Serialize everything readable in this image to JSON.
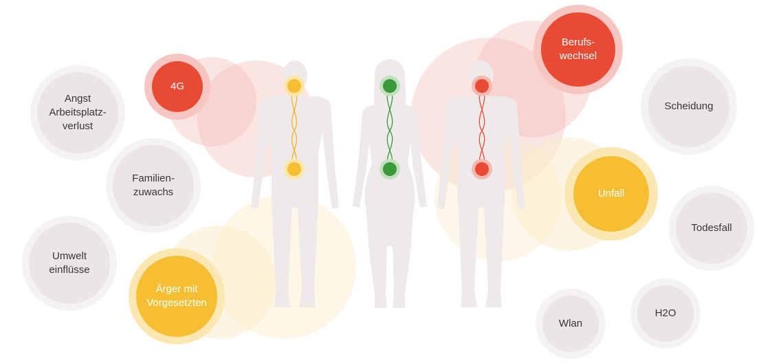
{
  "colors": {
    "red": "#e84a33",
    "yellow": "#f6be32",
    "green": "#3a9a3a",
    "neutral": "#ebe5e5",
    "figure": "#eeeaea"
  },
  "figures": [
    {
      "name": "left-figure",
      "chakra_color": "yellow"
    },
    {
      "name": "middle-figure",
      "chakra_color": "green"
    },
    {
      "name": "right-figure",
      "chakra_color": "red"
    }
  ],
  "bubbles": {
    "angst": {
      "label": "Angst\nArbeitsplatz-\nverlust",
      "state": "neutral"
    },
    "familienzuwachs": {
      "label": "Familien-\nzuwachs",
      "state": "neutral"
    },
    "umwelteinfluesse": {
      "label": "Umwelt\neinflüsse",
      "state": "neutral"
    },
    "viergee": {
      "label": "4G",
      "state": "red"
    },
    "aerger": {
      "label": "Ärger mit\nVorgesetzten",
      "state": "yellow"
    },
    "berufswechsel": {
      "label": "Berufs-\nwechsel",
      "state": "red"
    },
    "scheidung": {
      "label": "Scheidung",
      "state": "neutral"
    },
    "unfall": {
      "label": "Unfall",
      "state": "yellow"
    },
    "todesfall": {
      "label": "Todesfall",
      "state": "neutral"
    },
    "wlan": {
      "label": "Wlan",
      "state": "neutral"
    },
    "h2o": {
      "label": "H2O",
      "state": "neutral"
    }
  }
}
